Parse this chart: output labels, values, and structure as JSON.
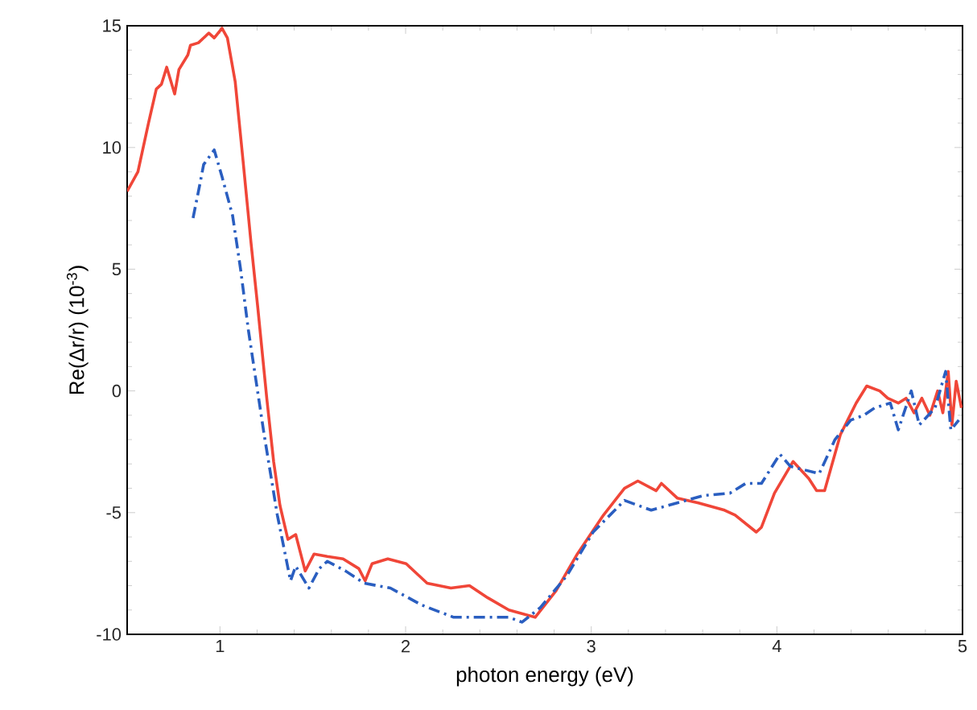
{
  "chart_data": {
    "type": "line",
    "xlabel": "photon energy (eV)",
    "ylabel": "Re(Δr/r) (10$^{-3}$)",
    "xlim": [
      0.5,
      5
    ],
    "ylim": [
      -10,
      15
    ],
    "xticks": [
      1,
      2,
      3,
      4,
      5
    ],
    "yticks": [
      -10,
      -5,
      0,
      5,
      10,
      15
    ],
    "marker": "none",
    "series": [
      {
        "color": "#f04638",
        "line_style": "solid",
        "x": [
          0.5,
          0.558,
          0.615,
          0.657,
          0.685,
          0.713,
          0.756,
          0.779,
          0.827,
          0.841,
          0.884,
          0.912,
          0.94,
          0.969,
          1.011,
          1.04,
          1.082,
          1.125,
          1.167,
          1.204,
          1.252,
          1.289,
          1.323,
          1.366,
          1.408,
          1.459,
          1.507,
          1.578,
          1.663,
          1.748,
          1.782,
          1.819,
          1.904,
          2.003,
          2.116,
          2.244,
          2.344,
          2.443,
          2.556,
          2.698,
          2.811,
          2.925,
          3.066,
          3.179,
          3.251,
          3.35,
          3.378,
          3.463,
          3.577,
          3.718,
          3.775,
          3.889,
          3.917,
          3.987,
          4.087,
          4.172,
          4.214,
          4.257,
          4.342,
          4.427,
          4.484,
          4.554,
          4.597,
          4.654,
          4.696,
          4.739,
          4.781,
          4.824,
          4.866,
          4.894,
          4.923,
          4.943,
          4.966,
          4.994
        ],
        "values": [
          8.2,
          9.0,
          11.0,
          12.4,
          12.6,
          13.3,
          12.2,
          13.2,
          13.8,
          14.2,
          14.3,
          14.5,
          14.7,
          14.5,
          14.9,
          14.5,
          12.7,
          9.4,
          6.1,
          3.4,
          -0.3,
          -2.9,
          -4.7,
          -6.1,
          -5.9,
          -7.4,
          -6.7,
          -6.8,
          -6.9,
          -7.3,
          -7.8,
          -7.1,
          -6.9,
          -7.1,
          -7.9,
          -8.1,
          -8.0,
          -8.5,
          -9.0,
          -9.3,
          -8.2,
          -6.7,
          -5.1,
          -4.0,
          -3.7,
          -4.1,
          -3.8,
          -4.4,
          -4.6,
          -4.9,
          -5.1,
          -5.8,
          -5.6,
          -4.2,
          -2.9,
          -3.6,
          -4.1,
          -4.1,
          -1.8,
          -0.5,
          0.2,
          0.0,
          -0.3,
          -0.5,
          -0.3,
          -0.9,
          -0.3,
          -1.0,
          0.0,
          -0.9,
          0.8,
          -1.4,
          0.4,
          -0.7
        ]
      },
      {
        "color": "#2a5ec0",
        "line_style": "dashdot",
        "x": [
          0.855,
          0.892,
          0.912,
          0.969,
          1.011,
          1.068,
          1.111,
          1.153,
          1.238,
          1.309,
          1.38,
          1.408,
          1.479,
          1.535,
          1.578,
          1.677,
          1.776,
          1.918,
          2.088,
          2.259,
          2.301,
          2.556,
          2.627,
          2.726,
          2.868,
          3.01,
          3.179,
          3.323,
          3.463,
          3.605,
          3.747,
          3.832,
          3.917,
          4.016,
          4.073,
          4.228,
          4.313,
          4.398,
          4.469,
          4.526,
          4.611,
          4.654,
          4.724,
          4.767,
          4.852,
          4.909,
          4.937,
          4.98
        ],
        "values": [
          7.1,
          8.5,
          9.3,
          9.9,
          8.8,
          7.2,
          5.0,
          2.5,
          -1.8,
          -5.1,
          -7.8,
          -7.2,
          -8.1,
          -7.3,
          -7.0,
          -7.4,
          -7.9,
          -8.1,
          -8.8,
          -9.3,
          -9.3,
          -9.3,
          -9.5,
          -8.9,
          -7.6,
          -5.8,
          -4.5,
          -4.9,
          -4.6,
          -4.3,
          -4.2,
          -3.8,
          -3.8,
          -2.6,
          -3.1,
          -3.4,
          -2.0,
          -1.2,
          -1.0,
          -0.7,
          -0.5,
          -1.6,
          0.0,
          -1.4,
          -0.7,
          0.8,
          -1.6,
          -1.2
        ]
      }
    ]
  }
}
